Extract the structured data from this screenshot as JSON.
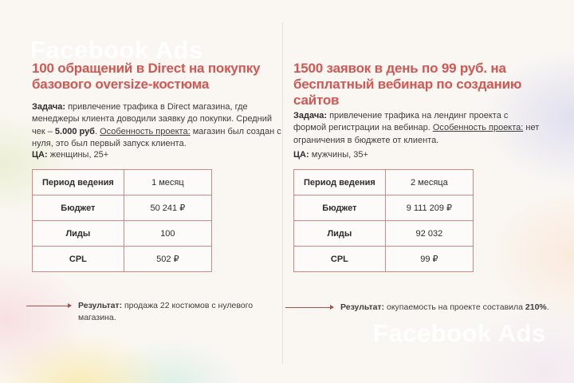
{
  "watermarks": {
    "top_left": "Facebook Ads",
    "bottom_right": "Facebook Ads"
  },
  "colors": {
    "accent_red": "#d15753",
    "table_border": "#d28983",
    "arrow": "#a8524d",
    "background": "#faf7f3"
  },
  "left_case": {
    "title": "100 обращений в Direct на покупку базового oversize-костюма",
    "task_label": "Задача:",
    "task_part1": " привлечение трафика в Direct магазина, где менеджеры клиента доводили заявку до покупки. Средний чек – ",
    "task_check": "5.000 руб",
    "task_part2": ". ",
    "task_feature_label": "Особенность проекта:",
    "task_part3": " магазин был создан с нуля, это был первый запуск клиента.",
    "audience_label": "ЦА:",
    "audience_value": " женщины, 25+",
    "table": {
      "rows": [
        {
          "label": "Период ведения",
          "value": "1 месяц"
        },
        {
          "label": "Бюджет",
          "value": "50 241 ₽"
        },
        {
          "label": "Лиды",
          "value": "100"
        },
        {
          "label": "CPL",
          "value": "502 ₽"
        }
      ]
    },
    "result_label": "Результат:",
    "result_text": " продажа 22 костюмов с нулевого магазина."
  },
  "right_case": {
    "title": "1500 заявок в день по 99 руб. на бесплатный вебинар по созданию сайтов",
    "task_label": "Задача:",
    "task_part1": " привлечение трафика на лендинг проекта с формой регистрации на вебинар. ",
    "task_feature_label": "Особенность проекта:",
    "task_part2": " нет ограничения в бюджете от клиента.",
    "audience_label": "ЦА:",
    "audience_value": " мужчины, 35+",
    "table": {
      "rows": [
        {
          "label": "Период ведения",
          "value": "2 месяца"
        },
        {
          "label": "Бюджет",
          "value": "9 111 209 ₽"
        },
        {
          "label": "Лиды",
          "value": "92 032"
        },
        {
          "label": "CPL",
          "value": "99 ₽"
        }
      ]
    },
    "result_label": "Результат:",
    "result_part1": " окупаемость на проекте составила ",
    "result_bold": "210%",
    "result_part2": "."
  }
}
